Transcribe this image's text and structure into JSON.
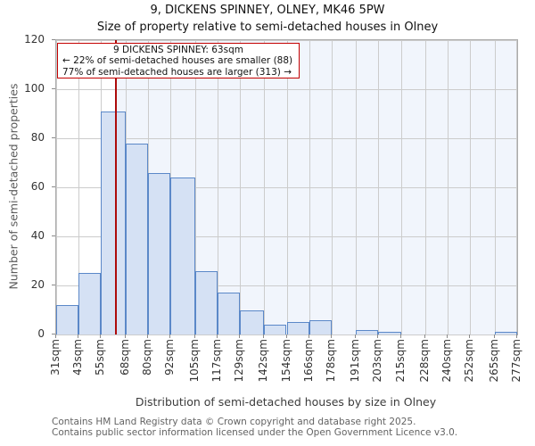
{
  "title": "9, DICKENS SPINNEY, OLNEY, MK46 5PW",
  "subtitle": "Size of property relative to semi-detached houses in Olney",
  "annotation": {
    "line1": "9 DICKENS SPINNEY: 63sqm",
    "line2": "← 22% of semi-detached houses are smaller (88)",
    "line3": "77% of semi-detached houses are larger (313) →"
  },
  "chart_data": {
    "type": "bar",
    "title": "9, DICKENS SPINNEY, OLNEY, MK46 5PW",
    "subtitle": "Size of property relative to semi-detached houses in Olney",
    "xlabel": "Distribution of semi-detached houses by size in Olney",
    "ylabel": "Number of semi-detached properties",
    "bin_edges_sqm": [
      31,
      43,
      55,
      68,
      80,
      92,
      105,
      117,
      129,
      142,
      154,
      166,
      178,
      191,
      203,
      215,
      228,
      240,
      252,
      265,
      277
    ],
    "x_tick_labels": [
      "31sqm",
      "43sqm",
      "55sqm",
      "68sqm",
      "80sqm",
      "92sqm",
      "105sqm",
      "117sqm",
      "129sqm",
      "142sqm",
      "154sqm",
      "166sqm",
      "178sqm",
      "191sqm",
      "203sqm",
      "215sqm",
      "228sqm",
      "240sqm",
      "252sqm",
      "265sqm",
      "277sqm"
    ],
    "values": [
      12,
      25,
      91,
      78,
      66,
      64,
      26,
      17,
      10,
      4,
      5,
      6,
      0,
      2,
      1,
      0,
      0,
      0,
      0,
      1
    ],
    "y_ticks": [
      0,
      20,
      40,
      60,
      80,
      100,
      120
    ],
    "ylim": [
      0,
      120
    ],
    "xlim_sqm": [
      31,
      277
    ],
    "marker_value_sqm": 63,
    "grid": true,
    "legend": "none"
  },
  "colors": {
    "bar_fill": "#d5e1f4",
    "bar_edge": "#5b88c8",
    "marker_line": "#ad0b0b",
    "annotation_border": "#c40000",
    "shade_right_of_marker": "#f1f5fc",
    "gridline": "#cccccc",
    "plot_border": "#ababab"
  },
  "footer": {
    "line1": "Contains HM Land Registry data © Crown copyright and database right 2025.",
    "line2": "Contains public sector information licensed under the Open Government Licence v3.0."
  }
}
